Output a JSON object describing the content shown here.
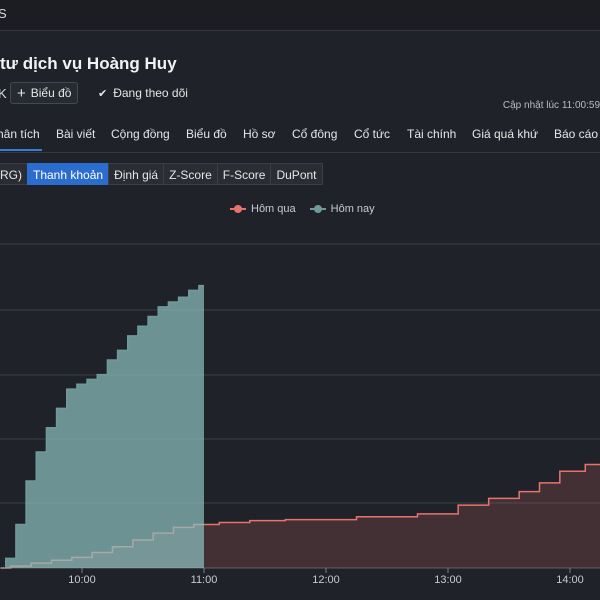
{
  "topbar": {
    "fragment": "S"
  },
  "header": {
    "title": "tư dịch vụ Hoàng Huy",
    "exchange_fragment": "K",
    "chart_button": "Biểu đồ",
    "follow_label": "Đang theo dõi",
    "updated": "Cập nhật lúc  11:00:59"
  },
  "nav": {
    "items": [
      {
        "label": "hân tích"
      },
      {
        "label": "Bài viết"
      },
      {
        "label": "Cộng đồng"
      },
      {
        "label": "Biểu đồ"
      },
      {
        "label": "Hồ sơ"
      },
      {
        "label": "Cổ đông"
      },
      {
        "label": "Cổ tức"
      },
      {
        "label": "Tài chính"
      },
      {
        "label": "Giá quá khứ"
      },
      {
        "label": "Báo cáo"
      }
    ]
  },
  "subtabs": [
    {
      "label": "RG)"
    },
    {
      "label": "Thanh khoản"
    },
    {
      "label": "Định giá"
    },
    {
      "label": "Z-Score"
    },
    {
      "label": "F-Score"
    },
    {
      "label": "DuPont"
    }
  ],
  "colors": {
    "yesterday": "#e8736c",
    "today": "#6e9a9a",
    "accent": "#2b6ccf"
  },
  "chart_data": {
    "type": "area",
    "legend": [
      "Hôm qua",
      "Hôm nay"
    ],
    "x_ticks": [
      "10:00",
      "11:00",
      "12:00",
      "13:00",
      "14:00"
    ],
    "series": [
      {
        "name": "Hôm qua",
        "points": [
          [
            "9:20",
            0.0
          ],
          [
            "9:30",
            0.2
          ],
          [
            "9:40",
            0.5
          ],
          [
            "9:50",
            0.8
          ],
          [
            "10:00",
            1.1
          ],
          [
            "10:10",
            1.6
          ],
          [
            "10:20",
            2.2
          ],
          [
            "10:30",
            2.9
          ],
          [
            "10:40",
            3.6
          ],
          [
            "10:50",
            4.2
          ],
          [
            "11:00",
            4.5
          ],
          [
            "11:15",
            4.7
          ],
          [
            "11:30",
            4.9
          ],
          [
            "11:50",
            5.0
          ],
          [
            "12:00",
            5.0
          ],
          [
            "12:30",
            5.3
          ],
          [
            "13:00",
            5.6
          ],
          [
            "13:10",
            6.5
          ],
          [
            "13:30",
            7.2
          ],
          [
            "13:40",
            7.9
          ],
          [
            "13:50",
            8.8
          ],
          [
            "14:00",
            10.0
          ],
          [
            "14:15",
            10.7
          ],
          [
            "14:30",
            11.5
          ]
        ]
      },
      {
        "name": "Hôm nay",
        "points": [
          [
            "9:20",
            0.0
          ],
          [
            "9:25",
            1.0
          ],
          [
            "9:30",
            4.5
          ],
          [
            "9:35",
            9.0
          ],
          [
            "9:40",
            12.0
          ],
          [
            "9:45",
            14.5
          ],
          [
            "9:50",
            16.5
          ],
          [
            "9:55",
            18.5
          ],
          [
            "10:00",
            19.0
          ],
          [
            "10:05",
            19.5
          ],
          [
            "10:10",
            20.0
          ],
          [
            "10:15",
            21.5
          ],
          [
            "10:20",
            22.5
          ],
          [
            "10:25",
            24.0
          ],
          [
            "10:30",
            25.0
          ],
          [
            "10:35",
            26.0
          ],
          [
            "10:40",
            27.0
          ],
          [
            "10:45",
            27.5
          ],
          [
            "10:50",
            28.0
          ],
          [
            "10:55",
            28.7
          ],
          [
            "11:00",
            29.2
          ]
        ]
      }
    ],
    "grid": true
  }
}
